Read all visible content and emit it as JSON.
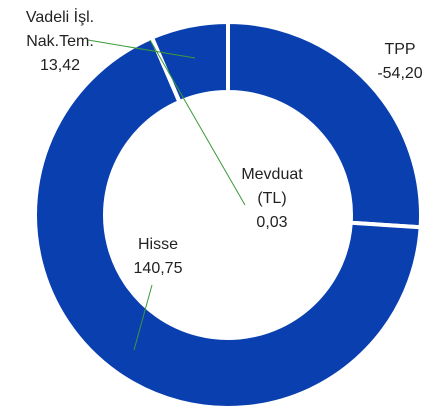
{
  "chart_data": {
    "type": "donut",
    "categories": [
      "TPP",
      "Hisse",
      "Mevduat\n(TL)",
      "Vadeli İşl.\nNak.Tem."
    ],
    "values": [
      -54.2,
      140.75,
      0.03,
      13.42
    ],
    "value_labels": [
      "-54,20",
      "140,75",
      "0,03",
      "13,42"
    ],
    "color": "#0a3fb0"
  }
}
